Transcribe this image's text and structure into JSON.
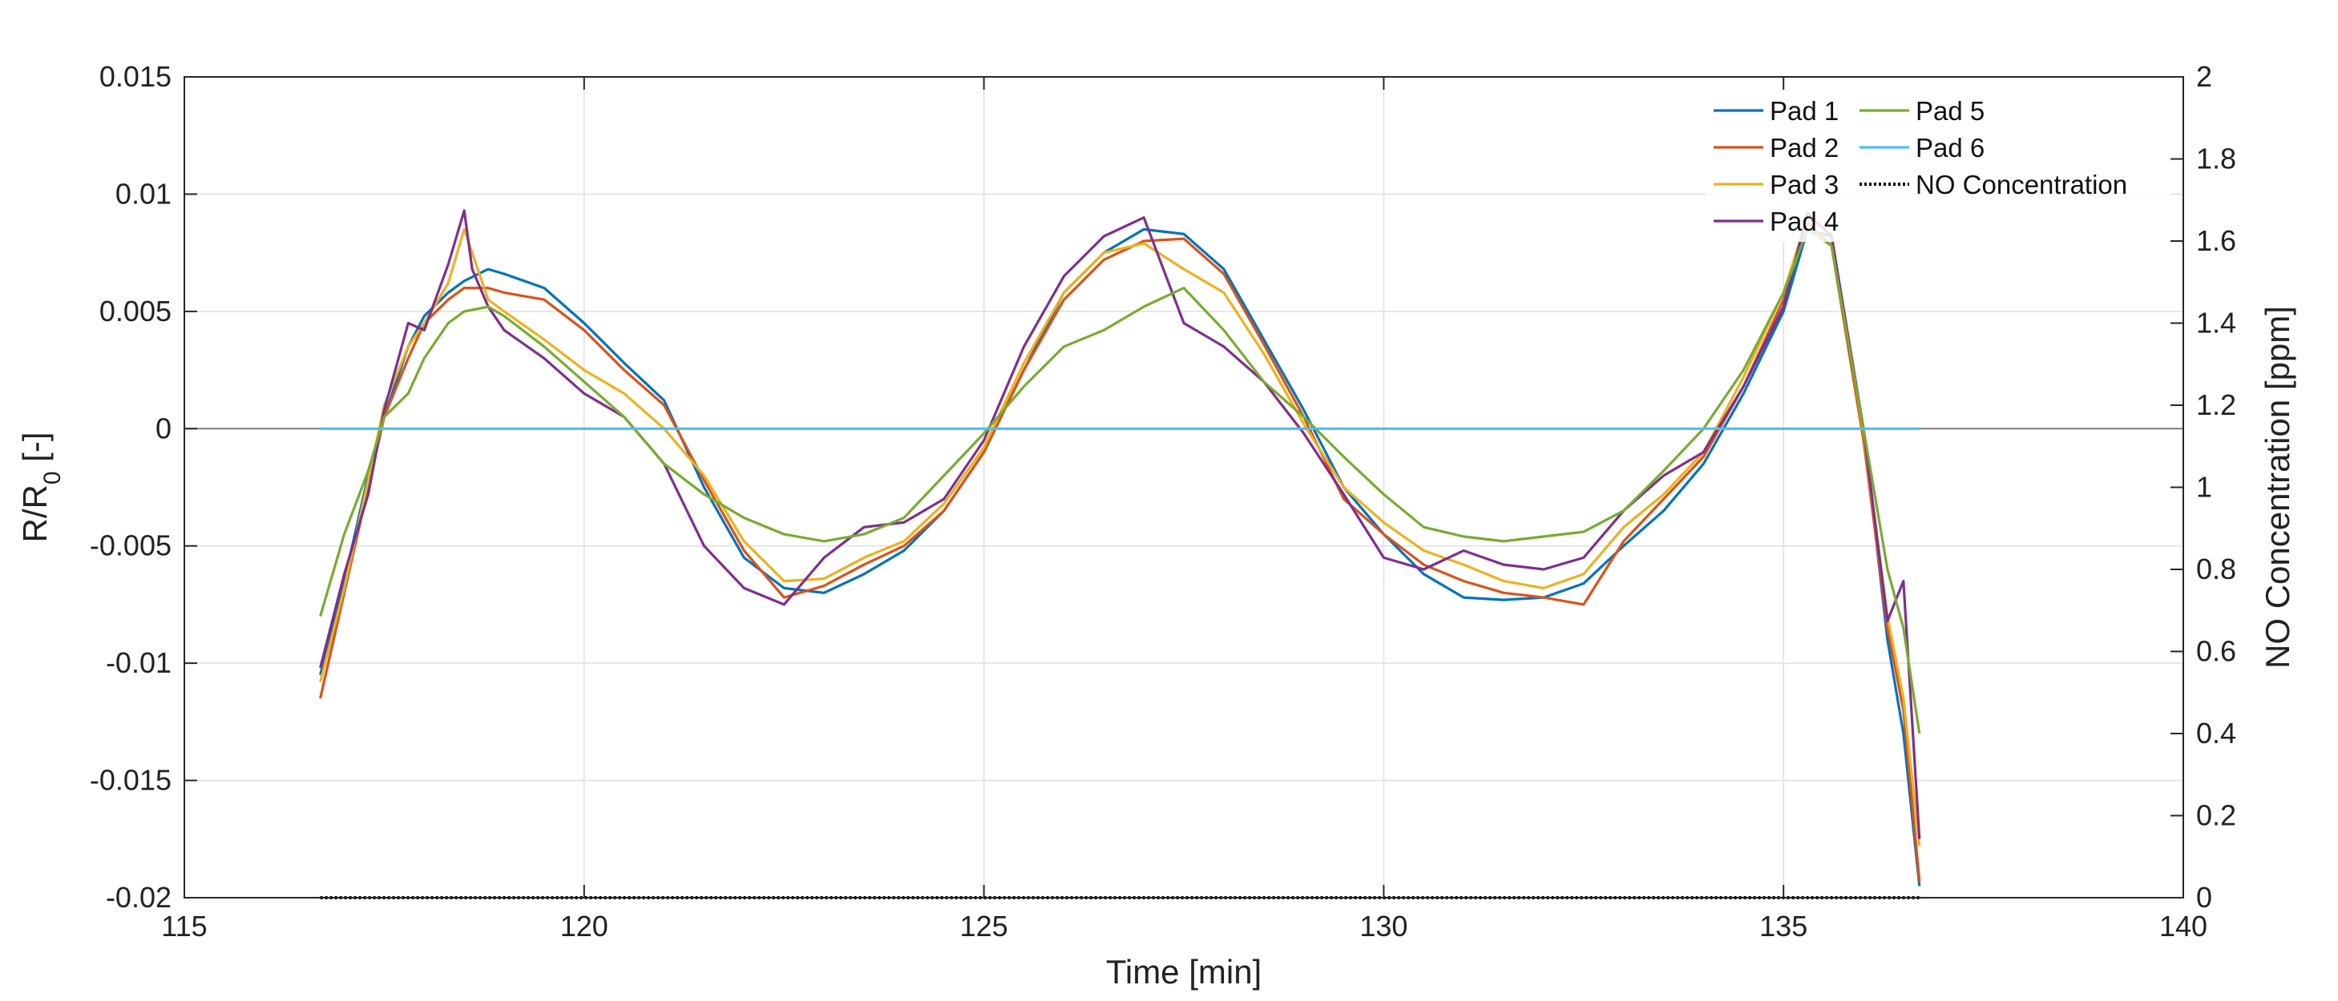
{
  "chart_data": {
    "type": "line",
    "xlabel": "Time [min]",
    "ylabel_left": "R/R",
    "ylabel_left_subscript": "0",
    "ylabel_left_suffix": " [-]",
    "ylabel_right": "NO Concentration [ppm]",
    "xlim": [
      115,
      140
    ],
    "ylim_left": [
      -0.02,
      0.015
    ],
    "ylim_right": [
      0,
      2
    ],
    "xticks": [
      "115",
      "120",
      "125",
      "130",
      "135",
      "140"
    ],
    "yticks_left": [
      "-0.02",
      "-0.015",
      "-0.01",
      "-0.005",
      "0",
      "0.005",
      "0.01",
      "0.015"
    ],
    "yticks_right": [
      "0",
      "0.2",
      "0.4",
      "0.6",
      "0.8",
      "1",
      "1.2",
      "1.4",
      "1.6",
      "1.8",
      "2"
    ],
    "grid": true,
    "legend_position": "top-right",
    "series": [
      {
        "name": "Pad 1",
        "color": "#0072BD",
        "axis": "left",
        "x": [
          116.7,
          117.0,
          117.3,
          117.5,
          117.8,
          118.0,
          118.3,
          118.5,
          118.8,
          119.0,
          119.5,
          120.0,
          120.5,
          121.0,
          121.5,
          122.0,
          122.5,
          123.0,
          123.5,
          124.0,
          124.5,
          125.0,
          125.5,
          126.0,
          126.5,
          127.0,
          127.5,
          128.0,
          128.5,
          129.0,
          129.5,
          130.0,
          130.5,
          131.0,
          131.5,
          132.0,
          132.5,
          133.0,
          133.5,
          134.0,
          134.5,
          135.0,
          135.3,
          135.6,
          136.0,
          136.3,
          136.5,
          136.7
        ],
        "y": [
          -0.0105,
          -0.0065,
          -0.002,
          0.0005,
          0.0035,
          0.0048,
          0.0058,
          0.0063,
          0.0068,
          0.0066,
          0.006,
          0.0045,
          0.0028,
          0.0012,
          -0.0025,
          -0.0055,
          -0.0068,
          -0.007,
          -0.0062,
          -0.0052,
          -0.0035,
          -0.001,
          0.0025,
          0.0058,
          0.0075,
          0.0085,
          0.0083,
          0.0068,
          0.0038,
          0.0008,
          -0.0025,
          -0.0045,
          -0.0062,
          -0.0072,
          -0.0073,
          -0.0072,
          -0.0066,
          -0.005,
          -0.0035,
          -0.0015,
          0.0015,
          0.005,
          0.0085,
          0.0082,
          0.0,
          -0.009,
          -0.013,
          -0.0195
        ]
      },
      {
        "name": "Pad 2",
        "color": "#D95319",
        "axis": "left",
        "x": [
          116.7,
          117.0,
          117.3,
          117.5,
          117.8,
          118.0,
          118.3,
          118.5,
          118.8,
          119.0,
          119.5,
          120.0,
          120.5,
          121.0,
          121.5,
          122.0,
          122.5,
          123.0,
          123.5,
          124.0,
          124.5,
          125.0,
          125.5,
          126.0,
          126.5,
          127.0,
          127.5,
          128.0,
          128.5,
          129.0,
          129.5,
          130.0,
          130.5,
          131.0,
          131.5,
          132.0,
          132.5,
          133.0,
          133.5,
          134.0,
          134.5,
          135.0,
          135.3,
          135.6,
          136.0,
          136.3,
          136.5,
          136.7
        ],
        "y": [
          -0.0115,
          -0.007,
          -0.0025,
          0.0005,
          0.003,
          0.0045,
          0.0055,
          0.006,
          0.006,
          0.0058,
          0.0055,
          0.0042,
          0.0025,
          0.001,
          -0.0022,
          -0.0052,
          -0.0072,
          -0.0067,
          -0.0058,
          -0.005,
          -0.0035,
          -0.001,
          0.0025,
          0.0055,
          0.0072,
          0.008,
          0.0081,
          0.0066,
          0.0036,
          0.0005,
          -0.003,
          -0.0045,
          -0.0058,
          -0.0065,
          -0.007,
          -0.0072,
          -0.0075,
          -0.0048,
          -0.003,
          -0.0012,
          0.0018,
          0.0055,
          0.0088,
          0.0078,
          -0.0005,
          -0.0085,
          -0.012,
          -0.0193
        ]
      },
      {
        "name": "Pad 3",
        "color": "#EDB120",
        "axis": "left",
        "x": [
          116.7,
          117.0,
          117.3,
          117.5,
          117.8,
          118.0,
          118.3,
          118.5,
          118.8,
          119.0,
          119.5,
          120.0,
          120.5,
          121.0,
          121.5,
          122.0,
          122.5,
          123.0,
          123.5,
          124.0,
          124.5,
          125.0,
          125.5,
          126.0,
          126.5,
          127.0,
          127.5,
          128.0,
          128.5,
          129.0,
          129.5,
          130.0,
          130.5,
          131.0,
          131.5,
          132.0,
          132.5,
          133.0,
          133.5,
          134.0,
          134.5,
          135.0,
          135.3,
          135.6,
          136.0,
          136.3,
          136.5,
          136.7
        ],
        "y": [
          -0.0108,
          -0.0068,
          -0.0022,
          0.001,
          0.0035,
          0.0045,
          0.0062,
          0.0085,
          0.0055,
          0.005,
          0.0038,
          0.0025,
          0.0015,
          0.0,
          -0.002,
          -0.0048,
          -0.0065,
          -0.0064,
          -0.0055,
          -0.0048,
          -0.0032,
          -0.0008,
          0.0028,
          0.0058,
          0.0075,
          0.0079,
          0.0068,
          0.0058,
          0.0032,
          0.0002,
          -0.0025,
          -0.004,
          -0.0052,
          -0.0058,
          -0.0065,
          -0.0068,
          -0.0062,
          -0.0042,
          -0.0028,
          -0.001,
          0.0022,
          0.0058,
          0.009,
          0.0083,
          -0.0002,
          -0.008,
          -0.0115,
          -0.0178
        ]
      },
      {
        "name": "Pad 4",
        "color": "#7E2F8E",
        "axis": "left",
        "x": [
          116.7,
          117.0,
          117.3,
          117.5,
          117.8,
          118.0,
          118.3,
          118.5,
          118.6,
          118.8,
          119.0,
          119.5,
          120.0,
          120.5,
          121.0,
          121.5,
          122.0,
          122.5,
          123.0,
          123.5,
          124.0,
          124.5,
          125.0,
          125.5,
          126.0,
          126.5,
          127.0,
          127.5,
          128.0,
          128.5,
          129.0,
          129.5,
          130.0,
          130.5,
          131.0,
          131.5,
          132.0,
          132.5,
          133.0,
          133.5,
          134.0,
          134.5,
          135.0,
          135.3,
          135.6,
          136.0,
          136.3,
          136.5,
          136.7
        ],
        "y": [
          -0.0102,
          -0.0062,
          -0.0028,
          0.0008,
          0.0045,
          0.0042,
          0.007,
          0.0093,
          0.0068,
          0.0052,
          0.0042,
          0.003,
          0.0015,
          0.0005,
          -0.0015,
          -0.005,
          -0.0068,
          -0.0075,
          -0.0055,
          -0.0042,
          -0.004,
          -0.003,
          -0.0005,
          0.0035,
          0.0065,
          0.0082,
          0.009,
          0.0045,
          0.0035,
          0.002,
          -0.0002,
          -0.0028,
          -0.0055,
          -0.006,
          -0.0052,
          -0.0058,
          -0.006,
          -0.0055,
          -0.0035,
          -0.002,
          -0.001,
          0.0018,
          0.0052,
          0.0092,
          0.0082,
          0.0,
          -0.0082,
          -0.0065,
          -0.0175
        ]
      },
      {
        "name": "Pad 5",
        "color": "#77AC30",
        "axis": "left",
        "x": [
          116.7,
          117.0,
          117.3,
          117.5,
          117.8,
          118.0,
          118.3,
          118.5,
          118.8,
          119.0,
          119.5,
          120.0,
          120.5,
          121.0,
          121.5,
          122.0,
          122.5,
          123.0,
          123.5,
          124.0,
          124.5,
          125.0,
          125.5,
          126.0,
          126.5,
          127.0,
          127.5,
          128.0,
          128.5,
          129.0,
          129.5,
          130.0,
          130.5,
          131.0,
          131.5,
          132.0,
          132.5,
          133.0,
          133.5,
          134.0,
          134.5,
          135.0,
          135.3,
          135.6,
          136.0,
          136.3,
          136.5,
          136.7
        ],
        "y": [
          -0.008,
          -0.0045,
          -0.0018,
          0.0005,
          0.0015,
          0.003,
          0.0045,
          0.005,
          0.0052,
          0.0048,
          0.0035,
          0.002,
          0.0005,
          -0.0015,
          -0.0028,
          -0.0038,
          -0.0045,
          -0.0048,
          -0.0045,
          -0.0038,
          -0.002,
          -0.0002,
          0.0018,
          0.0035,
          0.0042,
          0.0052,
          0.006,
          0.0042,
          0.002,
          0.0005,
          -0.0012,
          -0.0028,
          -0.0042,
          -0.0046,
          -0.0048,
          -0.0046,
          -0.0044,
          -0.0035,
          -0.0018,
          0.0,
          0.0025,
          0.0058,
          0.0085,
          0.0078,
          0.0,
          -0.006,
          -0.0085,
          -0.013
        ]
      },
      {
        "name": "Pad 6",
        "color": "#4DBEEE",
        "axis": "left",
        "x": [
          116.7,
          136.7
        ],
        "y": [
          0,
          0
        ]
      },
      {
        "name": "NO Concentration",
        "color": "#000000",
        "axis": "right",
        "style": "dotted",
        "x": [
          116.7,
          136.7
        ],
        "y": [
          0,
          0
        ]
      }
    ]
  }
}
